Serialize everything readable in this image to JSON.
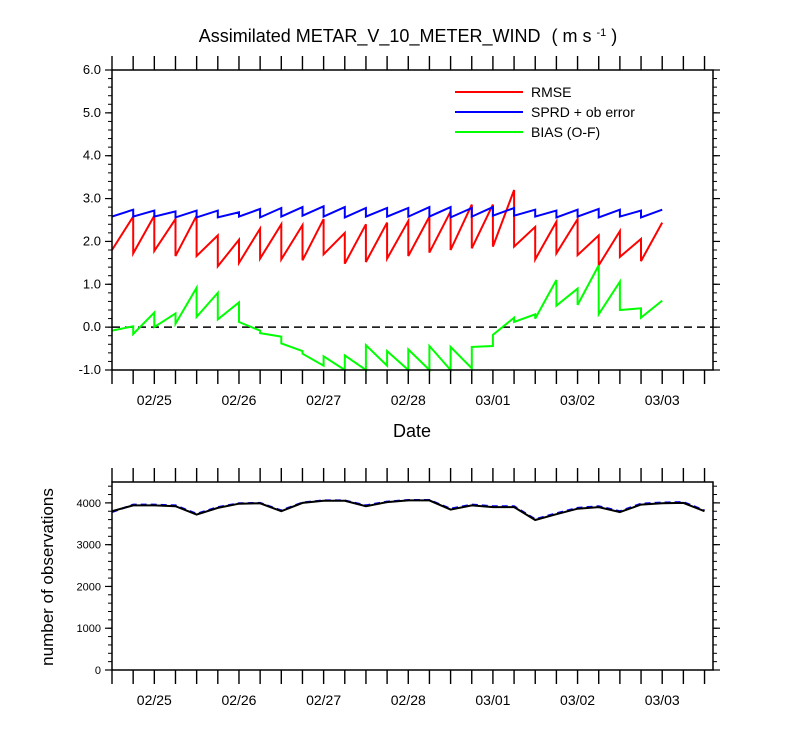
{
  "chart_data": [
    {
      "type": "line",
      "title": "Assimilated METAR_V_10_METER_WIND",
      "title_units": "( m s",
      "title_units_sup": "-1",
      "title_units_close": " )",
      "xlabel": "Date",
      "x_tick_labels": [
        "02/25",
        "02/26",
        "02/27",
        "02/28",
        "03/01",
        "03/02",
        "03/03"
      ],
      "x_tick_positions": [
        0.5,
        1.5,
        2.5,
        3.5,
        4.5,
        5.5,
        6.5
      ],
      "xlim": [
        0,
        7.1
      ],
      "ylim": [
        -1.0,
        6.0
      ],
      "y_tick_values": [
        -1.0,
        0.0,
        1.0,
        2.0,
        3.0,
        4.0,
        5.0,
        6.0
      ],
      "y_tick_labels": [
        "-1.0",
        "0.0",
        "1.0",
        "2.0",
        "3.0",
        "4.0",
        "5.0",
        "6.0"
      ],
      "zero_line": "dashed",
      "legend_position": "top-right",
      "series": [
        {
          "name": "RMSE",
          "color": "#ff0000",
          "points": [
            [
              0.0,
              1.8
            ],
            [
              0.25,
              2.58
            ],
            [
              0.25,
              1.72
            ],
            [
              0.5,
              2.6
            ],
            [
              0.5,
              1.78
            ],
            [
              0.75,
              2.52
            ],
            [
              0.75,
              1.66
            ],
            [
              1.0,
              2.6
            ],
            [
              1.0,
              1.66
            ],
            [
              1.25,
              2.14
            ],
            [
              1.25,
              1.42
            ],
            [
              1.5,
              2.04
            ],
            [
              1.5,
              1.5
            ],
            [
              1.75,
              2.3
            ],
            [
              1.75,
              1.6
            ],
            [
              2.0,
              2.4
            ],
            [
              2.0,
              1.58
            ],
            [
              2.25,
              2.38
            ],
            [
              2.25,
              1.56
            ],
            [
              2.5,
              2.52
            ],
            [
              2.5,
              1.7
            ],
            [
              2.75,
              2.2
            ],
            [
              2.75,
              1.48
            ],
            [
              3.0,
              2.4
            ],
            [
              3.0,
              1.52
            ],
            [
              3.25,
              2.44
            ],
            [
              3.25,
              1.6
            ],
            [
              3.5,
              2.48
            ],
            [
              3.5,
              1.66
            ],
            [
              3.75,
              2.58
            ],
            [
              3.75,
              1.74
            ],
            [
              4.0,
              2.7
            ],
            [
              4.0,
              1.8
            ],
            [
              4.25,
              2.86
            ],
            [
              4.25,
              1.84
            ],
            [
              4.5,
              2.86
            ],
            [
              4.5,
              1.88
            ],
            [
              4.75,
              3.2
            ],
            [
              4.75,
              1.88
            ],
            [
              5.0,
              2.34
            ],
            [
              5.0,
              1.58
            ],
            [
              5.25,
              2.46
            ],
            [
              5.25,
              1.72
            ],
            [
              5.5,
              2.52
            ],
            [
              5.5,
              1.68
            ],
            [
              5.75,
              2.14
            ],
            [
              5.75,
              1.44
            ],
            [
              6.0,
              2.24
            ],
            [
              6.0,
              1.64
            ],
            [
              6.25,
              2.06
            ],
            [
              6.25,
              1.54
            ],
            [
              6.5,
              2.44
            ]
          ]
        },
        {
          "name": "SPRD + ob error",
          "color": "#0000ff",
          "points": [
            [
              0.0,
              2.58
            ],
            [
              0.25,
              2.74
            ],
            [
              0.25,
              2.58
            ],
            [
              0.5,
              2.72
            ],
            [
              0.5,
              2.58
            ],
            [
              0.75,
              2.7
            ],
            [
              0.75,
              2.56
            ],
            [
              1.0,
              2.72
            ],
            [
              1.0,
              2.56
            ],
            [
              1.25,
              2.72
            ],
            [
              1.25,
              2.56
            ],
            [
              1.5,
              2.68
            ],
            [
              1.5,
              2.58
            ],
            [
              1.75,
              2.76
            ],
            [
              1.75,
              2.56
            ],
            [
              2.0,
              2.78
            ],
            [
              2.0,
              2.58
            ],
            [
              2.25,
              2.8
            ],
            [
              2.25,
              2.6
            ],
            [
              2.5,
              2.82
            ],
            [
              2.5,
              2.58
            ],
            [
              2.75,
              2.8
            ],
            [
              2.75,
              2.56
            ],
            [
              3.0,
              2.78
            ],
            [
              3.0,
              2.58
            ],
            [
              3.25,
              2.78
            ],
            [
              3.25,
              2.58
            ],
            [
              3.5,
              2.78
            ],
            [
              3.5,
              2.58
            ],
            [
              3.75,
              2.8
            ],
            [
              3.75,
              2.58
            ],
            [
              4.0,
              2.8
            ],
            [
              4.0,
              2.56
            ],
            [
              4.25,
              2.78
            ],
            [
              4.25,
              2.58
            ],
            [
              4.5,
              2.8
            ],
            [
              4.5,
              2.6
            ],
            [
              4.75,
              2.78
            ],
            [
              4.75,
              2.6
            ],
            [
              5.0,
              2.74
            ],
            [
              5.0,
              2.58
            ],
            [
              5.25,
              2.72
            ],
            [
              5.25,
              2.56
            ],
            [
              5.5,
              2.74
            ],
            [
              5.5,
              2.58
            ],
            [
              5.75,
              2.76
            ],
            [
              5.75,
              2.56
            ],
            [
              6.0,
              2.74
            ],
            [
              6.0,
              2.58
            ],
            [
              6.25,
              2.72
            ],
            [
              6.25,
              2.56
            ],
            [
              6.5,
              2.74
            ]
          ]
        },
        {
          "name": "BIAS (O-F)",
          "color": "#00ff00",
          "points": [
            [
              0.0,
              -0.08
            ],
            [
              0.25,
              0.02
            ],
            [
              0.25,
              -0.16
            ],
            [
              0.5,
              0.34
            ],
            [
              0.5,
              0.0
            ],
            [
              0.75,
              0.32
            ],
            [
              0.75,
              0.08
            ],
            [
              1.0,
              0.92
            ],
            [
              1.0,
              0.24
            ],
            [
              1.25,
              0.8
            ],
            [
              1.25,
              0.18
            ],
            [
              1.5,
              0.58
            ],
            [
              1.5,
              0.12
            ],
            [
              1.75,
              -0.08
            ],
            [
              1.75,
              -0.14
            ],
            [
              2.0,
              -0.22
            ],
            [
              2.0,
              -0.38
            ],
            [
              2.25,
              -0.56
            ],
            [
              2.25,
              -0.62
            ],
            [
              2.5,
              -0.9
            ],
            [
              2.5,
              -0.68
            ],
            [
              2.75,
              -1.0
            ],
            [
              2.75,
              -0.66
            ],
            [
              3.0,
              -1.0
            ],
            [
              3.0,
              -0.42
            ],
            [
              3.25,
              -0.9
            ],
            [
              3.25,
              -0.56
            ],
            [
              3.5,
              -1.0
            ],
            [
              3.5,
              -0.52
            ],
            [
              3.75,
              -1.0
            ],
            [
              3.75,
              -0.44
            ],
            [
              4.0,
              -1.0
            ],
            [
              4.0,
              -0.46
            ],
            [
              4.25,
              -0.96
            ],
            [
              4.25,
              -0.46
            ],
            [
              4.5,
              -0.44
            ],
            [
              4.5,
              -0.18
            ],
            [
              4.75,
              0.22
            ],
            [
              4.75,
              0.12
            ],
            [
              5.0,
              0.3
            ],
            [
              5.0,
              0.2
            ],
            [
              5.25,
              1.1
            ],
            [
              5.25,
              0.5
            ],
            [
              5.5,
              0.9
            ],
            [
              5.5,
              0.52
            ],
            [
              5.75,
              1.44
            ],
            [
              5.75,
              0.3
            ],
            [
              6.0,
              1.06
            ],
            [
              6.0,
              0.4
            ],
            [
              6.25,
              0.44
            ],
            [
              6.25,
              0.22
            ],
            [
              6.5,
              0.62
            ]
          ]
        }
      ]
    },
    {
      "type": "line",
      "ylabel": "number of observations",
      "x_tick_labels": [
        "02/25",
        "02/26",
        "02/27",
        "02/28",
        "03/01",
        "03/02",
        "03/03"
      ],
      "x_tick_positions": [
        0.5,
        1.5,
        2.5,
        3.5,
        4.5,
        5.5,
        6.5
      ],
      "xlim": [
        0,
        7.1
      ],
      "ylim": [
        0,
        4500
      ],
      "y_tick_values": [
        0,
        1000,
        2000,
        3000,
        4000
      ],
      "y_tick_labels": [
        "0",
        "1000",
        "2000",
        "3000",
        "4000"
      ],
      "series": [
        {
          "color": "#0000ff",
          "style": "dashed",
          "x": [
            0.0,
            0.25,
            0.5,
            0.75,
            1.0,
            1.25,
            1.5,
            1.75,
            2.0,
            2.25,
            2.5,
            2.75,
            3.0,
            3.25,
            3.5,
            3.75,
            4.0,
            4.25,
            4.5,
            4.75,
            5.0,
            5.25,
            5.5,
            5.75,
            6.0,
            6.25,
            6.5,
            6.75,
            7.0
          ],
          "values": [
            3780,
            3960,
            3960,
            3940,
            3740,
            3900,
            3990,
            4000,
            3820,
            4010,
            4060,
            4060,
            3940,
            4030,
            4070,
            4070,
            3860,
            3960,
            3920,
            3920,
            3610,
            3750,
            3880,
            3920,
            3800,
            3980,
            4010,
            4020,
            3820
          ]
        },
        {
          "color": "#000000",
          "style": "solid",
          "x": [
            0.0,
            0.25,
            0.5,
            0.75,
            1.0,
            1.25,
            1.5,
            1.75,
            2.0,
            2.25,
            2.5,
            2.75,
            3.0,
            3.25,
            3.5,
            3.75,
            4.0,
            4.25,
            4.5,
            4.75,
            5.0,
            5.25,
            5.5,
            5.75,
            6.0,
            6.25,
            6.5,
            6.75,
            7.0
          ],
          "values": [
            3800,
            3940,
            3940,
            3920,
            3720,
            3880,
            3980,
            3990,
            3800,
            4000,
            4050,
            4050,
            3920,
            4020,
            4060,
            4060,
            3840,
            3940,
            3900,
            3900,
            3590,
            3730,
            3860,
            3900,
            3780,
            3960,
            3990,
            4000,
            3800
          ]
        }
      ]
    }
  ]
}
